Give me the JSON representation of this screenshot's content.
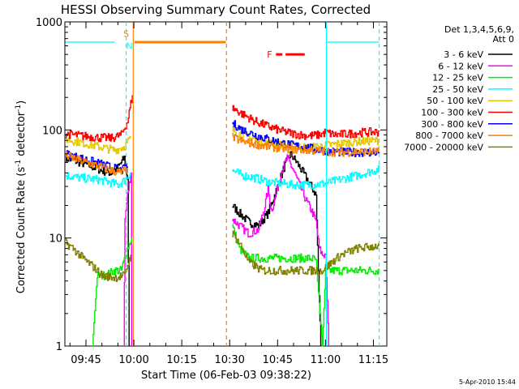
{
  "chart_data": {
    "type": "line",
    "title": "HESSI Observing Summary Count Rates, Corrected",
    "xlabel": "Start Time (06-Feb-03 09:38:22)",
    "ylabel": "Corrected Count Rate (s⁻¹ detector⁻¹)",
    "ylabel_parts": [
      "Corrected Count Rate (s",
      "-1",
      " detector",
      "-1",
      ")"
    ],
    "yscale": "log",
    "ylim": [
      1,
      1000
    ],
    "xlim_minutes": [
      578.4,
      679.2
    ],
    "x_ticks": [
      {
        "minute": 585,
        "label": "09:45"
      },
      {
        "minute": 600,
        "label": "10:00"
      },
      {
        "minute": 615,
        "label": "10:15"
      },
      {
        "minute": 630,
        "label": "10:30"
      },
      {
        "minute": 645,
        "label": "10:45"
      },
      {
        "minute": 660,
        "label": "11:00"
      },
      {
        "minute": 675,
        "label": "11:15"
      }
    ],
    "y_ticks": [
      {
        "value": 1,
        "label": "1"
      },
      {
        "value": 10,
        "label": "10"
      },
      {
        "value": 100,
        "label": "100"
      },
      {
        "value": 1000,
        "label": "1000"
      }
    ],
    "legend_header": [
      "Det 1,3,4,5,6,9,",
      "Att 0"
    ],
    "footer_date": "5-Apr-2010 15:44",
    "legend": [
      {
        "label": "3 - 6 keV",
        "color": "#000000"
      },
      {
        "label": "6 - 12 keV",
        "color": "#ff00ff"
      },
      {
        "label": "12 - 25 keV",
        "color": "#00ee00"
      },
      {
        "label": "25 - 50 keV",
        "color": "#00ffff"
      },
      {
        "label": "50 - 100 keV",
        "color": "#e6c800"
      },
      {
        "label": "100 - 300 keV",
        "color": "#ff0000"
      },
      {
        "label": "300 - 800 keV",
        "color": "#0000ff"
      },
      {
        "label": "800 - 7000 keV",
        "color": "#ff8000"
      },
      {
        "label": "7000 - 20000 keV",
        "color": "#808000"
      }
    ],
    "series": [
      {
        "name": "3 - 6 keV",
        "color": "#000000",
        "segments": [
          [
            [
              578.6,
              55
            ],
            [
              585,
              48
            ],
            [
              590,
              42
            ],
            [
              593,
              40
            ],
            [
              595,
              45
            ],
            [
              597,
              55
            ],
            [
              598,
              35
            ],
            [
              598.5,
              1
            ]
          ],
          [
            [
              630.8,
              20
            ],
            [
              633,
              17
            ],
            [
              636,
              14
            ],
            [
              639,
              13
            ],
            [
              642,
              17
            ],
            [
              645,
              30
            ],
            [
              647,
              45
            ],
            [
              649,
              60
            ],
            [
              651,
              50
            ],
            [
              653,
              40
            ],
            [
              655,
              32
            ],
            [
              657,
              25
            ],
            [
              658.5,
              1
            ]
          ]
        ]
      },
      {
        "name": "6 - 12 keV",
        "color": "#ff00ff",
        "segments": [
          [
            [
              596.8,
              1
            ],
            [
              597.2,
              15
            ],
            [
              598,
              25
            ],
            [
              599,
              40
            ],
            [
              599.3,
              1
            ]
          ],
          [
            [
              630.8,
              15
            ],
            [
              633,
              13
            ],
            [
              636,
              11
            ],
            [
              639,
              12
            ],
            [
              641,
              20
            ],
            [
              642,
              28
            ],
            [
              643,
              18
            ],
            [
              644,
              22
            ],
            [
              646,
              40
            ],
            [
              648,
              55
            ],
            [
              650,
              42
            ],
            [
              652,
              30
            ],
            [
              654,
              22
            ],
            [
              656,
              17
            ],
            [
              657,
              14
            ],
            [
              658,
              8
            ],
            [
              659,
              7
            ],
            [
              660,
              7
            ],
            [
              661,
              1
            ]
          ]
        ]
      },
      {
        "name": "12 - 25 keV",
        "color": "#00ee00",
        "segments": [
          [
            [
              587,
              1
            ],
            [
              588.5,
              4.5
            ],
            [
              591,
              4.5
            ],
            [
              594,
              5
            ],
            [
              596,
              5
            ],
            [
              598,
              8
            ],
            [
              599.3,
              10
            ]
          ],
          [
            [
              630.8,
              13
            ],
            [
              633,
              8
            ],
            [
              636,
              6.5
            ],
            [
              640,
              6.5
            ],
            [
              645,
              6.5
            ],
            [
              650,
              6.5
            ],
            [
              655,
              6.5
            ],
            [
              657,
              6.3
            ],
            [
              659,
              1
            ],
            [
              660,
              5
            ],
            [
              665,
              5
            ],
            [
              670,
              5
            ],
            [
              675,
              5
            ],
            [
              676.8,
              5
            ]
          ]
        ]
      },
      {
        "name": "25 - 50 keV",
        "color": "#00ffff",
        "segments": [
          [
            [
              578.6,
              650
            ],
            [
              594,
              650
            ]
          ],
          [
            [
              578.6,
              38
            ],
            [
              583,
              36
            ],
            [
              588,
              35
            ],
            [
              592,
              33
            ],
            [
              595,
              31
            ],
            [
              597,
              34
            ],
            [
              599,
              40
            ]
          ],
          [
            [
              660.5,
              650
            ],
            [
              676.8,
              650
            ]
          ],
          [
            [
              630.8,
              42
            ],
            [
              634,
              38
            ],
            [
              638,
              36
            ],
            [
              642,
              33
            ],
            [
              646,
              32
            ],
            [
              650,
              31
            ],
            [
              655,
              31
            ],
            [
              660,
              32
            ],
            [
              665,
              35
            ],
            [
              670,
              38
            ],
            [
              675,
              42
            ],
            [
              676.8,
              43
            ]
          ]
        ]
      },
      {
        "name": "50 - 100 keV",
        "color": "#e6c800",
        "segments": [
          [
            [
              578.6,
              82
            ],
            [
              584,
              76
            ],
            [
              589,
              70
            ],
            [
              594,
              65
            ],
            [
              597,
              70
            ],
            [
              599,
              85
            ]
          ],
          [
            [
              630.8,
              100
            ],
            [
              634,
              90
            ],
            [
              638,
              82
            ],
            [
              642,
              76
            ],
            [
              646,
              72
            ],
            [
              650,
              70
            ],
            [
              655,
              68
            ],
            [
              660,
              72
            ],
            [
              665,
              75
            ],
            [
              670,
              78
            ],
            [
              676.8,
              80
            ]
          ]
        ]
      },
      {
        "name": "100 - 300 keV",
        "color": "#ff0000",
        "segments": [
          [
            [
              578.6,
              92
            ],
            [
              584,
              88
            ],
            [
              589,
              85
            ],
            [
              593,
              84
            ],
            [
              596,
              90
            ],
            [
              598,
              120
            ],
            [
              599.5,
              210
            ]
          ],
          [
            [
              630.8,
              160
            ],
            [
              634,
              140
            ],
            [
              638,
              120
            ],
            [
              642,
              108
            ],
            [
              646,
              98
            ],
            [
              650,
              92
            ],
            [
              655,
              88
            ],
            [
              658,
              90
            ],
            [
              660,
              95
            ],
            [
              663,
              90
            ],
            [
              667,
              92
            ],
            [
              672,
              95
            ],
            [
              676.8,
              96
            ]
          ]
        ]
      },
      {
        "name": "300 - 800 keV",
        "color": "#0000ff",
        "segments": [
          [
            [
              578.6,
              60
            ],
            [
              583,
              55
            ],
            [
              588,
              50
            ],
            [
              593,
              45
            ],
            [
              596,
              42
            ],
            [
              598,
              46
            ]
          ],
          [
            [
              630.8,
              115
            ],
            [
              634,
              100
            ],
            [
              638,
              90
            ],
            [
              642,
              82
            ],
            [
              646,
              76
            ],
            [
              650,
              72
            ],
            [
              655,
              68
            ],
            [
              658,
              65
            ],
            [
              662,
              63
            ],
            [
              667,
              62
            ],
            [
              672,
              62
            ],
            [
              676.8,
              62
            ]
          ]
        ]
      },
      {
        "name": "800 - 7000 keV",
        "color": "#ff8000",
        "segments": [
          [
            [
              578.6,
              58
            ],
            [
              583,
              52
            ],
            [
              588,
              47
            ],
            [
              593,
              42
            ],
            [
              596,
              40
            ],
            [
              598,
              44
            ]
          ],
          [
            [
              630.8,
              85
            ],
            [
              634,
              78
            ],
            [
              638,
              74
            ],
            [
              642,
              70
            ],
            [
              646,
              68
            ],
            [
              650,
              66
            ],
            [
              655,
              65
            ],
            [
              660,
              63
            ],
            [
              665,
              62
            ],
            [
              670,
              63
            ],
            [
              676.8,
              63
            ]
          ]
        ]
      },
      {
        "name": "7000 - 20000 keV",
        "color": "#808000",
        "segments": [
          [
            [
              578.6,
              9
            ],
            [
              581,
              8
            ],
            [
              584,
              6.5
            ],
            [
              587,
              5.5
            ],
            [
              590,
              4.5
            ],
            [
              594,
              4.3
            ],
            [
              597,
              4.5
            ],
            [
              599,
              7
            ]
          ],
          [
            [
              630.8,
              11
            ],
            [
              633,
              9
            ],
            [
              636,
              6
            ],
            [
              640,
              5
            ],
            [
              645,
              5
            ],
            [
              650,
              5
            ],
            [
              655,
              5
            ],
            [
              659,
              5
            ],
            [
              662,
              6
            ],
            [
              665,
              7
            ],
            [
              670,
              8
            ],
            [
              676.8,
              8.5
            ]
          ]
        ]
      }
    ],
    "vertical_markers": [
      {
        "minute": 597.6,
        "color": "#00ffff",
        "style": "dashed"
      },
      {
        "minute": 599.8,
        "color": "#ff8000",
        "style": "solid"
      },
      {
        "minute": 629.0,
        "color": "#ff8000",
        "style": "dashed"
      },
      {
        "minute": 660.3,
        "color": "#00ffff",
        "style": "solid"
      },
      {
        "minute": 676.8,
        "color": "#00ffff",
        "style": "dashed"
      }
    ],
    "flag_bars": [
      {
        "start": 600.2,
        "end": 628.8,
        "value": 650,
        "color": "#ff8000"
      },
      {
        "start": 644.5,
        "end": 646.5,
        "value": 500,
        "color": "#ff0000"
      },
      {
        "start": 647.5,
        "end": 653.5,
        "value": 500,
        "color": "#ff0000"
      }
    ],
    "flag_labels": [
      {
        "text": "S",
        "minute": 597.6,
        "value": 780,
        "color": "#ff8000"
      },
      {
        "text": "N",
        "minute": 598.6,
        "value": 600,
        "color": "#00ffff"
      },
      {
        "text": "F",
        "minute": 642.5,
        "value": 500,
        "color": "#ff0000"
      }
    ]
  }
}
